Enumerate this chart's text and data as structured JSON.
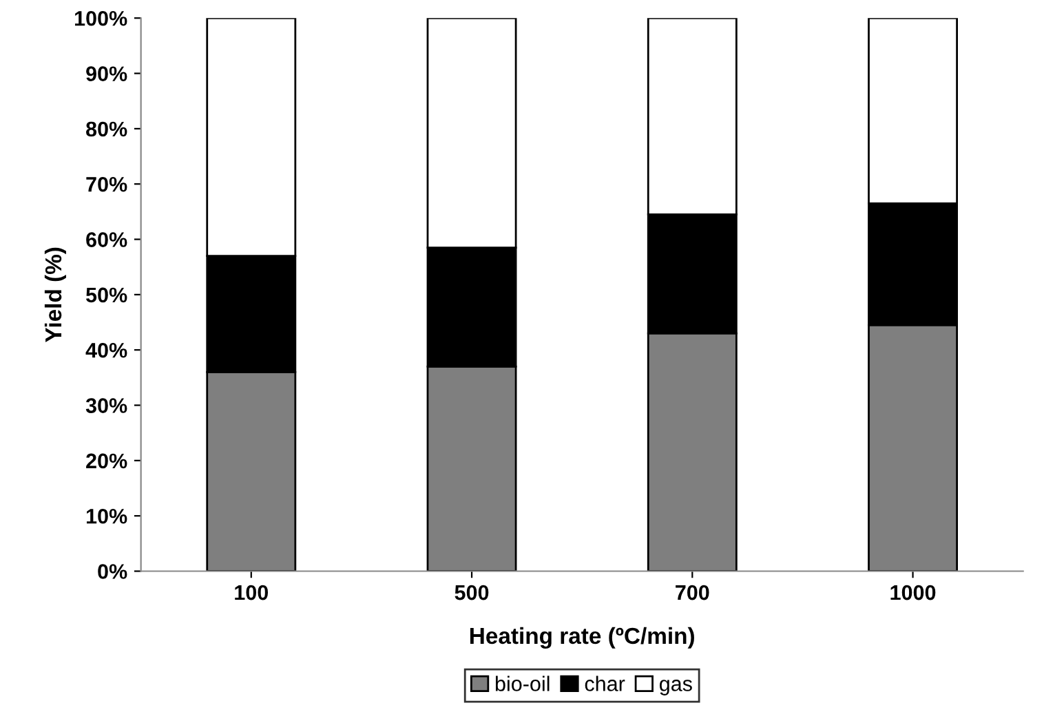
{
  "chart_data": {
    "type": "bar",
    "stacked": true,
    "xlabel": "Heating rate (ºC/min)",
    "ylabel": "Yield (%)",
    "categories": [
      "100",
      "500",
      "700",
      "1000"
    ],
    "series": [
      {
        "name": "bio-oil",
        "color": "#7f7f7f",
        "values": [
          36,
          37,
          43,
          44.5
        ]
      },
      {
        "name": "char",
        "color": "#000000",
        "values": [
          21,
          21.5,
          21.5,
          22
        ]
      },
      {
        "name": "gas",
        "color": "#ffffff",
        "values": [
          43,
          41.5,
          35.5,
          33.5
        ]
      }
    ],
    "ylim": [
      0,
      100
    ],
    "yticks": [
      {
        "value": 0,
        "label": "0%"
      },
      {
        "value": 10,
        "label": "10%"
      },
      {
        "value": 20,
        "label": "20%"
      },
      {
        "value": 30,
        "label": "30%"
      },
      {
        "value": 40,
        "label": "40%"
      },
      {
        "value": 50,
        "label": "50%"
      },
      {
        "value": 60,
        "label": "60%"
      },
      {
        "value": 70,
        "label": "70%"
      },
      {
        "value": 80,
        "label": "80%"
      },
      {
        "value": 90,
        "label": "90%"
      },
      {
        "value": 100,
        "label": "100%"
      }
    ],
    "grid": false,
    "legend": "bottom"
  }
}
